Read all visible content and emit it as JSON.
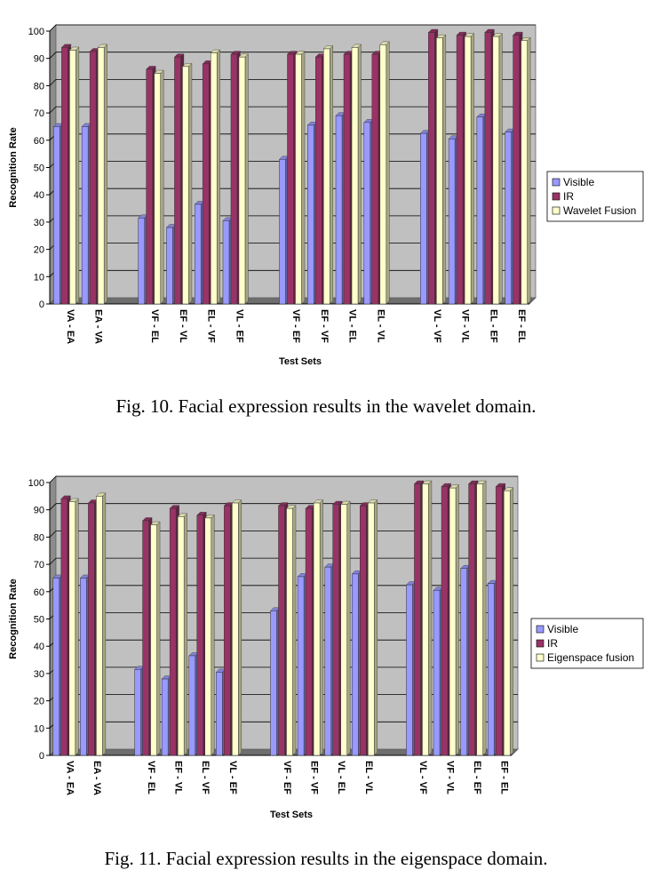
{
  "chart_data": [
    {
      "type": "bar",
      "title": "",
      "xlabel": "Test Sets",
      "ylabel": "Recognition Rate",
      "ylim": [
        0,
        100
      ],
      "yticks": [
        0,
        10,
        20,
        30,
        40,
        50,
        60,
        70,
        80,
        90,
        100
      ],
      "grid": true,
      "legend_position": "right",
      "categories": [
        "VA - EA",
        "EA - VA",
        "VF - EL",
        "EF - VL",
        "EL - VF",
        "VL - EF",
        "VF - EF",
        "EF - VF",
        "VL - EL",
        "EL - VL",
        "VL - VF",
        "VF - VL",
        "EL - EF",
        "EF - EL"
      ],
      "series": [
        {
          "name": "Visible",
          "color": "#9999ff",
          "values": [
            65,
            65,
            31.5,
            28,
            36.5,
            30.5,
            53,
            65.5,
            69,
            66.5,
            62.5,
            60.5,
            68.5,
            63
          ]
        },
        {
          "name": "IR",
          "color": "#993366",
          "values": [
            94,
            92.5,
            86,
            90.5,
            88,
            91.5,
            91.5,
            90.5,
            91.5,
            91.5,
            99.5,
            98.5,
            99.5,
            98.5
          ]
        },
        {
          "name": "Wavelet Fusion",
          "color": "#ffffcc",
          "values": [
            93,
            94,
            84.5,
            87,
            92,
            90.5,
            91.5,
            93.5,
            94,
            95,
            97.5,
            98,
            98,
            96.5
          ]
        }
      ],
      "caption": "Fig. 10. Facial expression results in the wavelet domain."
    },
    {
      "type": "bar",
      "title": "",
      "xlabel": "Test Sets",
      "ylabel": "Recognition Rate",
      "ylim": [
        0,
        100
      ],
      "yticks": [
        0,
        10,
        20,
        30,
        40,
        50,
        60,
        70,
        80,
        90,
        100
      ],
      "grid": true,
      "legend_position": "right",
      "categories": [
        "VA - EA",
        "EA - VA",
        "VF - EL",
        "EF - VL",
        "EL - VF",
        "VL - EF",
        "VF - EF",
        "EF - VF",
        "VL - EL",
        "EL - VL",
        "VL - VF",
        "VF - VL",
        "EL - EF",
        "EF - EL"
      ],
      "series": [
        {
          "name": "Visible",
          "color": "#9999ff",
          "values": [
            65,
            65,
            31.5,
            28,
            36.5,
            30.5,
            53,
            65.5,
            69,
            66.5,
            62.5,
            60.5,
            68.5,
            63
          ]
        },
        {
          "name": "IR",
          "color": "#993366",
          "values": [
            94,
            92.5,
            86,
            90.5,
            88,
            91.5,
            91.5,
            90.5,
            92,
            91.5,
            99.5,
            98.5,
            99.5,
            98.5
          ]
        },
        {
          "name": "Eigenspace fusion",
          "color": "#ffffcc",
          "values": [
            93,
            95,
            84.5,
            87.5,
            87,
            92.5,
            90.5,
            92.5,
            92,
            92.5,
            99.5,
            98,
            99.5,
            97
          ]
        }
      ],
      "caption": "Fig. 11. Facial expression results in the eigenspace domain."
    }
  ]
}
